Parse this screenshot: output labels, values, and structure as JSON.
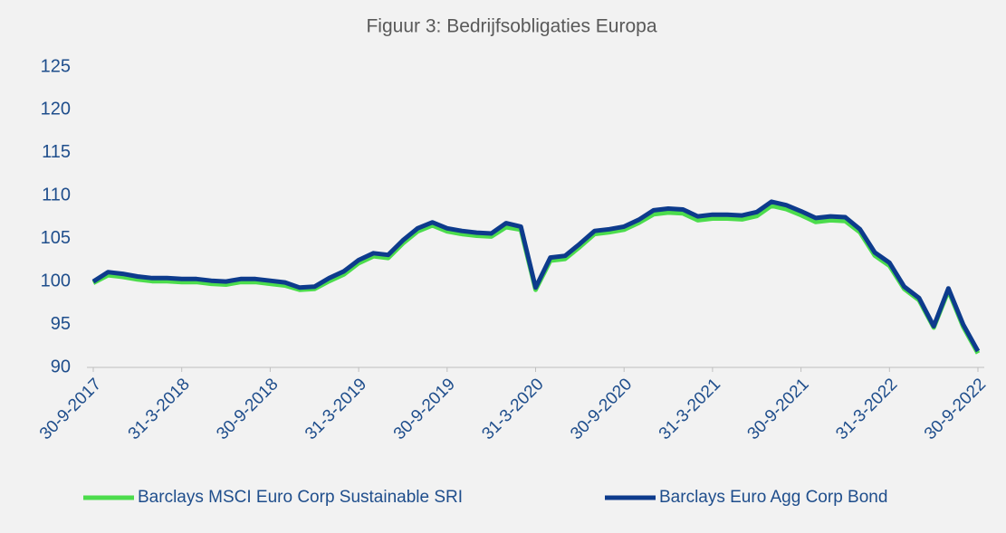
{
  "chart_data": {
    "type": "line",
    "title": "Figuur 3: Bedrijfsobligaties Europa",
    "categories": [
      "30-9-2017",
      null,
      null,
      null,
      null,
      null,
      "31-3-2018",
      null,
      null,
      null,
      null,
      null,
      "30-9-2018",
      null,
      null,
      null,
      null,
      null,
      "31-3-2019",
      null,
      null,
      null,
      null,
      null,
      "30-9-2019",
      null,
      null,
      null,
      null,
      null,
      "31-3-2020",
      null,
      null,
      null,
      null,
      null,
      "30-9-2020",
      null,
      null,
      null,
      null,
      null,
      "31-3-2021",
      null,
      null,
      null,
      null,
      null,
      "30-9-2021",
      null,
      null,
      null,
      null,
      null,
      "31-3-2022",
      null,
      null,
      null,
      null,
      null,
      "30-9-2022"
    ],
    "series": [
      {
        "name": "Barclays MSCI Euro Corp Sustainable SRI",
        "color": "#4cdc4c",
        "values": [
          100,
          100.9,
          100.7,
          100.4,
          100.2,
          100.2,
          100.1,
          100.1,
          99.9,
          99.8,
          100.1,
          100.1,
          99.9,
          99.7,
          99.2,
          99.3,
          100.2,
          101.0,
          102.3,
          103.1,
          102.9,
          104.6,
          106.0,
          106.7,
          106.0,
          105.7,
          105.5,
          105.4,
          106.5,
          106.2,
          99.2,
          102.6,
          102.8,
          104.2,
          105.7,
          105.9,
          106.2,
          107.0,
          108.0,
          108.2,
          108.1,
          107.3,
          107.5,
          107.5,
          107.4,
          107.8,
          109.0,
          108.6,
          107.9,
          107.1,
          107.3,
          107.2,
          105.9,
          103.2,
          102.0,
          99.3,
          98.0,
          94.8,
          99.1,
          94.9,
          91.8
        ]
      },
      {
        "name": "Barclays Euro Agg Corp Bond",
        "color": "#0d3b8c",
        "values": [
          100,
          101.1,
          100.9,
          100.6,
          100.4,
          100.4,
          100.3,
          100.3,
          100.1,
          100.0,
          100.3,
          100.3,
          100.1,
          99.9,
          99.3,
          99.4,
          100.4,
          101.2,
          102.5,
          103.3,
          103.1,
          104.8,
          106.2,
          106.9,
          106.2,
          105.9,
          105.7,
          105.6,
          106.8,
          106.4,
          99.3,
          102.8,
          103.0,
          104.4,
          105.9,
          106.1,
          106.4,
          107.2,
          108.3,
          108.5,
          108.4,
          107.6,
          107.8,
          107.8,
          107.7,
          108.1,
          109.3,
          108.9,
          108.2,
          107.4,
          107.6,
          107.5,
          106.1,
          103.4,
          102.2,
          99.4,
          98.1,
          94.8,
          99.2,
          95.0,
          91.9
        ]
      }
    ],
    "ylim": [
      90,
      125
    ],
    "yticks": [
      90,
      95,
      100,
      105,
      110,
      115,
      120,
      125
    ],
    "grid": false,
    "legend": "bottom"
  }
}
